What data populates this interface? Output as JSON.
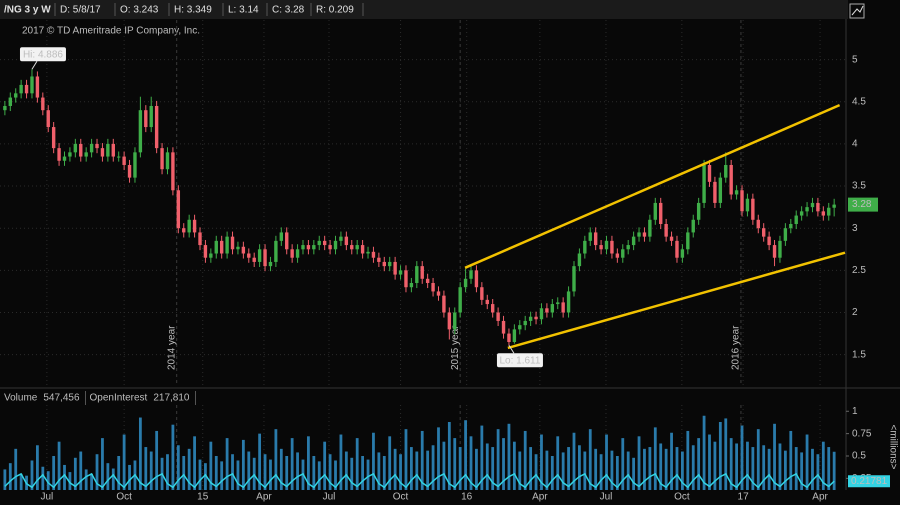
{
  "header": {
    "symbol": "/NG 3 y W",
    "date": "D: 5/8/17",
    "open": "O: 3.243",
    "high": "H: 3.349",
    "low": "L: 3.14",
    "close": "C: 3.28",
    "range": "R: 0.209"
  },
  "chart_data": [
    {
      "type": "candlestick",
      "copyright": "2017 © TD Ameritrade IP Company, Inc.",
      "up_color": "#3fae49",
      "down_color": "#f0606b",
      "open": [
        4.4,
        4.45,
        4.55,
        4.6,
        4.7,
        4.6,
        4.8,
        4.55,
        4.4,
        4.2,
        3.95,
        3.8,
        3.85,
        3.9,
        4.0,
        3.85,
        3.9,
        4.0,
        3.95,
        3.85,
        4.0,
        3.85,
        3.85,
        3.75,
        3.6,
        3.9,
        4.4,
        4.2,
        4.45,
        3.95,
        3.7,
        3.9,
        3.45,
        3.0,
        2.95,
        3.1,
        2.95,
        2.8,
        2.65,
        2.7,
        2.85,
        2.7,
        2.9,
        2.75,
        2.78,
        2.7,
        2.65,
        2.6,
        2.75,
        2.55,
        2.6,
        2.85,
        2.95,
        2.75,
        2.65,
        2.75,
        2.8,
        2.75,
        2.8,
        2.85,
        2.8,
        2.75,
        2.85,
        2.9,
        2.8,
        2.75,
        2.8,
        2.7,
        2.72,
        2.65,
        2.6,
        2.55,
        2.6,
        2.45,
        2.5,
        2.3,
        2.35,
        2.55,
        2.4,
        2.35,
        2.25,
        2.2,
        2.0,
        1.8,
        2.0,
        2.3,
        2.4,
        2.5,
        2.3,
        2.15,
        2.1,
        2.0,
        1.9,
        1.75,
        1.65,
        1.8,
        1.85,
        1.9,
        1.95,
        1.92,
        2.05,
        2.0,
        2.1,
        2.12,
        2.0,
        2.25,
        2.55,
        2.7,
        2.85,
        2.95,
        2.8,
        2.75,
        2.85,
        2.7,
        2.65,
        2.75,
        2.8,
        2.9,
        2.95,
        2.9,
        3.1,
        3.3,
        3.05,
        2.9,
        2.85,
        2.65,
        2.75,
        2.95,
        3.1,
        3.3,
        3.75,
        3.55,
        3.3,
        3.6,
        3.75,
        3.4,
        3.45,
        3.2,
        3.35,
        3.1,
        3.0,
        2.9,
        2.8,
        2.65,
        2.85,
        3.0,
        3.05,
        3.15,
        3.2,
        3.25,
        3.3,
        3.2,
        3.15,
        3.243
      ],
      "high": [
        4.51,
        4.61,
        4.66,
        4.76,
        4.76,
        4.886,
        4.86,
        4.61,
        4.46,
        4.26,
        4.01,
        3.91,
        3.96,
        4.06,
        4.06,
        3.96,
        4.06,
        4.06,
        4.01,
        4.06,
        4.06,
        3.91,
        3.91,
        3.81,
        3.96,
        4.56,
        4.46,
        4.56,
        4.51,
        4.01,
        3.96,
        3.96,
        3.51,
        3.06,
        3.16,
        3.16,
        3.01,
        2.86,
        2.76,
        2.91,
        2.91,
        2.96,
        2.96,
        2.84,
        2.84,
        2.76,
        2.71,
        2.81,
        2.81,
        2.66,
        2.91,
        3.01,
        3.01,
        2.81,
        2.81,
        2.86,
        2.86,
        2.86,
        2.91,
        2.91,
        2.86,
        2.91,
        2.96,
        2.96,
        2.86,
        2.86,
        2.86,
        2.78,
        2.78,
        2.71,
        2.66,
        2.66,
        2.66,
        2.56,
        2.56,
        2.41,
        2.61,
        2.61,
        2.46,
        2.41,
        2.31,
        2.26,
        2.06,
        2.06,
        2.36,
        2.52,
        2.56,
        2.56,
        2.36,
        2.21,
        2.16,
        2.06,
        1.96,
        1.81,
        1.86,
        1.91,
        1.96,
        2.01,
        2.01,
        2.11,
        2.11,
        2.16,
        2.18,
        2.18,
        2.31,
        2.61,
        2.76,
        2.91,
        3.01,
        3.01,
        2.86,
        2.91,
        2.91,
        2.76,
        2.81,
        2.86,
        2.96,
        3.01,
        3.01,
        3.16,
        3.36,
        3.36,
        3.11,
        2.96,
        2.91,
        2.81,
        3.01,
        3.16,
        3.36,
        3.81,
        3.81,
        3.61,
        3.66,
        3.9,
        3.81,
        3.51,
        3.51,
        3.41,
        3.41,
        3.16,
        3.06,
        2.96,
        2.86,
        2.91,
        3.06,
        3.11,
        3.21,
        3.26,
        3.31,
        3.36,
        3.36,
        3.26,
        3.3,
        3.349
      ],
      "low": [
        4.34,
        4.39,
        4.49,
        4.54,
        4.54,
        4.54,
        4.49,
        4.34,
        4.14,
        3.89,
        3.74,
        3.74,
        3.79,
        3.84,
        3.79,
        3.79,
        3.84,
        3.89,
        3.79,
        3.79,
        3.79,
        3.79,
        3.69,
        3.54,
        3.54,
        3.84,
        4.14,
        4.14,
        3.89,
        3.64,
        3.64,
        3.39,
        2.94,
        2.89,
        2.89,
        2.89,
        2.74,
        2.59,
        2.59,
        2.64,
        2.64,
        2.64,
        2.69,
        2.69,
        2.64,
        2.59,
        2.54,
        2.54,
        2.49,
        2.49,
        2.54,
        2.79,
        2.69,
        2.59,
        2.59,
        2.69,
        2.69,
        2.69,
        2.74,
        2.74,
        2.69,
        2.69,
        2.79,
        2.74,
        2.69,
        2.69,
        2.64,
        2.64,
        2.59,
        2.54,
        2.49,
        2.49,
        2.39,
        2.39,
        2.24,
        2.24,
        2.29,
        2.34,
        2.29,
        2.19,
        2.14,
        1.94,
        1.68,
        1.74,
        1.94,
        2.24,
        2.34,
        2.24,
        2.09,
        2.04,
        1.94,
        1.84,
        1.69,
        1.611,
        1.63,
        1.74,
        1.79,
        1.84,
        1.86,
        1.86,
        1.94,
        1.94,
        2.04,
        1.94,
        1.94,
        2.19,
        2.49,
        2.64,
        2.79,
        2.74,
        2.69,
        2.69,
        2.64,
        2.59,
        2.59,
        2.69,
        2.74,
        2.84,
        2.84,
        2.84,
        3.04,
        2.99,
        2.84,
        2.79,
        2.59,
        2.59,
        2.69,
        2.89,
        3.04,
        3.24,
        3.49,
        3.24,
        3.24,
        3.54,
        3.34,
        3.34,
        3.14,
        3.14,
        3.04,
        2.94,
        2.84,
        2.74,
        2.55,
        2.59,
        2.79,
        2.94,
        2.99,
        3.09,
        3.14,
        3.19,
        3.14,
        3.09,
        3.09,
        3.14
      ],
      "close": [
        4.45,
        4.55,
        4.6,
        4.7,
        4.6,
        4.8,
        4.55,
        4.4,
        4.2,
        3.95,
        3.8,
        3.85,
        3.9,
        4.0,
        3.85,
        3.9,
        4.0,
        3.95,
        3.85,
        4.0,
        3.85,
        3.85,
        3.75,
        3.6,
        3.9,
        4.4,
        4.2,
        4.45,
        3.95,
        3.7,
        3.9,
        3.45,
        3.0,
        2.95,
        3.1,
        2.95,
        2.8,
        2.65,
        2.7,
        2.85,
        2.7,
        2.9,
        2.75,
        2.78,
        2.7,
        2.65,
        2.6,
        2.75,
        2.55,
        2.6,
        2.85,
        2.95,
        2.75,
        2.65,
        2.75,
        2.8,
        2.75,
        2.8,
        2.85,
        2.8,
        2.75,
        2.85,
        2.9,
        2.8,
        2.75,
        2.8,
        2.7,
        2.72,
        2.65,
        2.6,
        2.55,
        2.6,
        2.45,
        2.5,
        2.3,
        2.35,
        2.55,
        2.4,
        2.35,
        2.25,
        2.2,
        2.0,
        1.8,
        2.0,
        2.3,
        2.4,
        2.5,
        2.3,
        2.15,
        2.1,
        2.0,
        1.9,
        1.75,
        1.65,
        1.8,
        1.85,
        1.9,
        1.95,
        1.92,
        2.05,
        2.0,
        2.1,
        2.12,
        2.0,
        2.25,
        2.55,
        2.7,
        2.85,
        2.95,
        2.8,
        2.75,
        2.85,
        2.7,
        2.65,
        2.75,
        2.8,
        2.9,
        2.95,
        2.9,
        3.1,
        3.3,
        3.05,
        2.9,
        2.85,
        2.65,
        2.75,
        2.95,
        3.1,
        3.3,
        3.75,
        3.55,
        3.3,
        3.6,
        3.75,
        3.4,
        3.45,
        3.2,
        3.35,
        3.1,
        3.0,
        2.9,
        2.8,
        2.65,
        2.85,
        3.0,
        3.05,
        3.15,
        3.2,
        3.25,
        3.3,
        3.2,
        3.15,
        3.243,
        3.28
      ],
      "xlim": [
        -0.9,
        155
      ],
      "xticks": [
        {
          "value": 7.75,
          "label": "Jul"
        },
        {
          "value": 22,
          "label": "Oct"
        },
        {
          "value": 36.5,
          "label": "15"
        },
        {
          "value": 47.8,
          "label": "Apr"
        },
        {
          "value": 59.8,
          "label": "Jul"
        },
        {
          "value": 73,
          "label": "Oct"
        },
        {
          "value": 85.2,
          "label": "16"
        },
        {
          "value": 98.7,
          "label": "Apr"
        },
        {
          "value": 110.9,
          "label": "Jul"
        },
        {
          "value": 124.9,
          "label": "Oct"
        },
        {
          "value": 136.2,
          "label": "17"
        },
        {
          "value": 150.4,
          "label": "Apr"
        }
      ],
      "year_markers": [
        {
          "value": 31.7,
          "label": "2014 year"
        },
        {
          "value": 84,
          "label": "2015 year"
        },
        {
          "value": 135.8,
          "label": "2016 year"
        }
      ],
      "ylim": [
        1.14,
        5.47
      ],
      "yticks": [
        1.5,
        2,
        2.5,
        3,
        3.5,
        4,
        4.5,
        5
      ],
      "grid": true,
      "annotations": [
        {
          "text": "Hi: 4.886",
          "x": 5,
          "y": 4.886
        },
        {
          "text": "Lo: 1.611",
          "x": 93,
          "y": 1.611
        }
      ],
      "trendlines": [
        {
          "color": "#f2c200",
          "x": [
            84.9,
            154
          ],
          "y": [
            2.53,
            4.46
          ]
        },
        {
          "color": "#f2c200",
          "x": [
            92.8,
            155
          ],
          "y": [
            1.58,
            2.71
          ]
        }
      ]
    },
    {
      "type": "bar_line",
      "ylabel": "<millions>",
      "ylim": [
        0.12,
        1.07
      ],
      "yticks": [
        0.25,
        0.5,
        0.75,
        1
      ],
      "series": [
        {
          "name": "Volume",
          "type": "bar",
          "color": "#2a7bab",
          "value_label": "547,456",
          "values": [
            0.35,
            0.42,
            0.58,
            0.3,
            0.28,
            0.45,
            0.62,
            0.38,
            0.33,
            0.5,
            0.66,
            0.4,
            0.32,
            0.48,
            0.55,
            0.35,
            0.3,
            0.52,
            0.7,
            0.42,
            0.36,
            0.5,
            0.74,
            0.4,
            0.45,
            0.93,
            0.6,
            0.55,
            0.78,
            0.48,
            0.52,
            0.85,
            0.62,
            0.5,
            0.58,
            0.72,
            0.46,
            0.42,
            0.66,
            0.5,
            0.44,
            0.7,
            0.52,
            0.45,
            0.68,
            0.55,
            0.48,
            0.75,
            0.52,
            0.46,
            0.8,
            0.58,
            0.5,
            0.7,
            0.54,
            0.46,
            0.72,
            0.5,
            0.44,
            0.66,
            0.52,
            0.45,
            0.74,
            0.55,
            0.48,
            0.7,
            0.5,
            0.46,
            0.76,
            0.54,
            0.5,
            0.72,
            0.58,
            0.52,
            0.8,
            0.6,
            0.55,
            0.78,
            0.56,
            0.62,
            0.82,
            0.66,
            0.88,
            0.7,
            0.6,
            0.9,
            0.72,
            0.58,
            0.84,
            0.64,
            0.6,
            0.8,
            0.7,
            0.86,
            0.66,
            0.55,
            0.78,
            0.6,
            0.52,
            0.74,
            0.56,
            0.5,
            0.72,
            0.54,
            0.6,
            0.76,
            0.62,
            0.55,
            0.8,
            0.58,
            0.52,
            0.74,
            0.56,
            0.5,
            0.7,
            0.55,
            0.48,
            0.72,
            0.58,
            0.6,
            0.82,
            0.64,
            0.58,
            0.76,
            0.6,
            0.55,
            0.78,
            0.62,
            0.7,
            0.95,
            0.74,
            0.66,
            0.88,
            0.92,
            0.7,
            0.64,
            0.84,
            0.66,
            0.6,
            0.8,
            0.62,
            0.58,
            0.86,
            0.64,
            0.56,
            0.78,
            0.6,
            0.54,
            0.74,
            0.58,
            0.52,
            0.66,
            0.6,
            0.547456
          ]
        },
        {
          "name": "OpenInterest",
          "type": "line",
          "color": "#33d3e3",
          "value_label": "217,810",
          "values": [
            0.16,
            0.22,
            0.27,
            0.3,
            0.19,
            0.15,
            0.23,
            0.29,
            0.2,
            0.15,
            0.23,
            0.29,
            0.2,
            0.16,
            0.22,
            0.27,
            0.3,
            0.19,
            0.15,
            0.23,
            0.29,
            0.2,
            0.15,
            0.23,
            0.29,
            0.2,
            0.16,
            0.22,
            0.27,
            0.3,
            0.19,
            0.15,
            0.23,
            0.29,
            0.2,
            0.15,
            0.23,
            0.29,
            0.2,
            0.16,
            0.22,
            0.27,
            0.3,
            0.19,
            0.15,
            0.23,
            0.29,
            0.2,
            0.15,
            0.23,
            0.29,
            0.2,
            0.16,
            0.22,
            0.27,
            0.3,
            0.19,
            0.15,
            0.23,
            0.29,
            0.2,
            0.15,
            0.23,
            0.29,
            0.2,
            0.16,
            0.22,
            0.27,
            0.3,
            0.19,
            0.15,
            0.23,
            0.29,
            0.2,
            0.15,
            0.23,
            0.29,
            0.2,
            0.16,
            0.22,
            0.27,
            0.3,
            0.19,
            0.15,
            0.23,
            0.29,
            0.2,
            0.15,
            0.23,
            0.29,
            0.2,
            0.16,
            0.22,
            0.27,
            0.3,
            0.19,
            0.15,
            0.23,
            0.29,
            0.2,
            0.15,
            0.23,
            0.29,
            0.2,
            0.16,
            0.22,
            0.27,
            0.3,
            0.19,
            0.15,
            0.23,
            0.29,
            0.2,
            0.15,
            0.23,
            0.29,
            0.2,
            0.16,
            0.22,
            0.27,
            0.3,
            0.19,
            0.15,
            0.23,
            0.29,
            0.2,
            0.15,
            0.23,
            0.29,
            0.2,
            0.16,
            0.22,
            0.27,
            0.3,
            0.19,
            0.15,
            0.23,
            0.29,
            0.2,
            0.15,
            0.23,
            0.29,
            0.2,
            0.16,
            0.22,
            0.27,
            0.3,
            0.19,
            0.15,
            0.23,
            0.29,
            0.2,
            0.16,
            0.21781
          ]
        }
      ]
    }
  ]
}
